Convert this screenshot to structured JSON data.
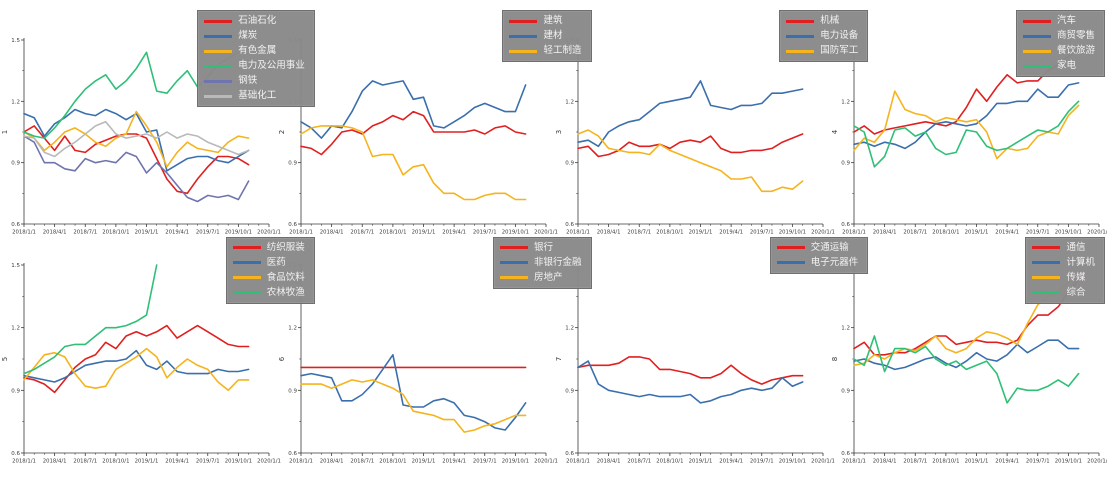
{
  "page": {
    "background": "#ffffff"
  },
  "axis": {
    "x_tick_labels": [
      "2018/1/1",
      "2018/4/1",
      "2018/7/1",
      "2018/10/1",
      "2019/1/1",
      "2019/4/1",
      "2019/7/1",
      "2019/10/1",
      "2020/1/1"
    ],
    "x_months_total": 24,
    "x_major_step": 3,
    "y_tick_labels": [
      "0.6",
      "0.9",
      "1.2",
      "1.5"
    ],
    "y_major": [
      0.6,
      0.9,
      1.2,
      1.5
    ],
    "y_minor": [
      0.75,
      1.05,
      1.35
    ],
    "ylim": [
      0.6,
      1.5
    ],
    "grid": false,
    "spine_color": "#3a3a3a",
    "tick_label_color": "#3a3a3a"
  },
  "legend_style": {
    "bg": "#898989",
    "border": "#6f6f6f",
    "text": "#f2f2f2",
    "position": "upper-right-outside"
  },
  "chart_data": [
    {
      "type": "line",
      "index": 1,
      "ylabel": "1",
      "ylim": [
        0.6,
        1.5
      ],
      "series": [
        {
          "name": "石油石化",
          "color": "#e02020",
          "values": [
            1.05,
            1.08,
            1.02,
            0.96,
            1.03,
            0.96,
            0.95,
            0.99,
            1.01,
            1.03,
            1.04,
            1.04,
            1.02,
            0.92,
            0.82,
            0.76,
            0.75,
            0.82,
            0.88,
            0.93,
            0.93,
            0.92,
            0.89
          ]
        },
        {
          "name": "煤炭",
          "color": "#3a6fad",
          "values": [
            1.14,
            1.12,
            1.03,
            1.09,
            1.12,
            1.16,
            1.14,
            1.13,
            1.16,
            1.14,
            1.11,
            1.14,
            1.05,
            1.06,
            0.86,
            0.89,
            0.92,
            0.93,
            0.93,
            0.91,
            0.9,
            0.93,
            0.96
          ]
        },
        {
          "name": "有色金属",
          "color": "#f5b41e",
          "values": [
            1.05,
            1.02,
            0.96,
            1.0,
            1.05,
            1.07,
            1.04,
            1.0,
            0.98,
            1.02,
            1.04,
            1.15,
            1.08,
            1.0,
            0.88,
            0.95,
            1.0,
            0.97,
            0.96,
            0.95,
            1.0,
            1.03,
            1.02
          ]
        },
        {
          "name": "电力及公用事业",
          "color": "#2fbf77",
          "values": [
            1.05,
            1.03,
            1.02,
            1.07,
            1.13,
            1.2,
            1.26,
            1.3,
            1.33,
            1.26,
            1.3,
            1.36,
            1.44,
            1.25,
            1.24,
            1.3,
            1.35,
            1.27,
            1.32,
            1.38,
            1.41,
            1.44,
            1.46
          ]
        },
        {
          "name": "钢铁",
          "color": "#7074ae",
          "values": [
            1.03,
            1.0,
            0.9,
            0.9,
            0.87,
            0.86,
            0.92,
            0.9,
            0.91,
            0.9,
            0.95,
            0.93,
            0.85,
            0.9,
            0.85,
            0.79,
            0.73,
            0.71,
            0.74,
            0.73,
            0.74,
            0.72,
            0.81
          ]
        },
        {
          "name": "基础化工",
          "color": "#b9b9b9",
          "values": [
            1.03,
            1.02,
            0.95,
            0.93,
            0.97,
            1.0,
            1.04,
            1.08,
            1.1,
            1.04,
            1.02,
            1.03,
            1.04,
            1.02,
            1.05,
            1.02,
            1.04,
            1.03,
            1.0,
            0.98,
            0.96,
            0.94,
            0.96
          ]
        }
      ]
    },
    {
      "type": "line",
      "index": 2,
      "ylabel": "2",
      "ylim": [
        0.6,
        1.5
      ],
      "series": [
        {
          "name": "建筑",
          "color": "#e02020",
          "values": [
            0.98,
            0.97,
            0.94,
            0.99,
            1.05,
            1.06,
            1.04,
            1.08,
            1.1,
            1.13,
            1.11,
            1.15,
            1.13,
            1.05,
            1.05,
            1.05,
            1.05,
            1.06,
            1.04,
            1.07,
            1.08,
            1.05,
            1.04
          ]
        },
        {
          "name": "建材",
          "color": "#3a6fad",
          "values": [
            1.1,
            1.07,
            1.02,
            1.08,
            1.07,
            1.15,
            1.25,
            1.3,
            1.28,
            1.29,
            1.3,
            1.21,
            1.22,
            1.08,
            1.07,
            1.1,
            1.13,
            1.17,
            1.19,
            1.17,
            1.15,
            1.15,
            1.28
          ]
        },
        {
          "name": "轻工制造",
          "color": "#f5b41e",
          "values": [
            1.04,
            1.07,
            1.08,
            1.08,
            1.08,
            1.07,
            1.05,
            0.93,
            0.94,
            0.94,
            0.84,
            0.88,
            0.89,
            0.8,
            0.75,
            0.75,
            0.72,
            0.72,
            0.74,
            0.75,
            0.75,
            0.72,
            0.72
          ]
        }
      ]
    },
    {
      "type": "line",
      "index": 3,
      "ylabel": "3",
      "ylim": [
        0.6,
        1.5
      ],
      "series": [
        {
          "name": "机械",
          "color": "#e02020",
          "values": [
            0.97,
            0.98,
            0.93,
            0.94,
            0.96,
            1.0,
            0.98,
            0.98,
            0.99,
            0.97,
            1.0,
            1.01,
            1.0,
            1.03,
            0.97,
            0.95,
            0.95,
            0.96,
            0.96,
            0.97,
            1.0,
            1.02,
            1.04
          ]
        },
        {
          "name": "电力设备",
          "color": "#3a6fad",
          "values": [
            1.0,
            1.01,
            0.98,
            1.05,
            1.08,
            1.1,
            1.11,
            1.15,
            1.19,
            1.2,
            1.21,
            1.22,
            1.3,
            1.18,
            1.17,
            1.16,
            1.18,
            1.18,
            1.19,
            1.24,
            1.24,
            1.25,
            1.26
          ]
        },
        {
          "name": "国防军工",
          "color": "#f5b41e",
          "values": [
            1.04,
            1.06,
            1.03,
            0.97,
            0.96,
            0.95,
            0.95,
            0.94,
            0.99,
            0.96,
            0.94,
            0.92,
            0.9,
            0.88,
            0.86,
            0.82,
            0.82,
            0.83,
            0.76,
            0.76,
            0.78,
            0.77,
            0.81
          ]
        }
      ]
    },
    {
      "type": "line",
      "index": 4,
      "ylabel": "4",
      "ylim": [
        0.6,
        1.5
      ],
      "series": [
        {
          "name": "汽车",
          "color": "#e02020",
          "values": [
            1.05,
            1.08,
            1.04,
            1.06,
            1.07,
            1.08,
            1.09,
            1.1,
            1.09,
            1.08,
            1.1,
            1.17,
            1.26,
            1.2,
            1.27,
            1.33,
            1.29,
            1.3,
            1.3,
            1.35,
            1.38,
            1.42,
            1.46
          ]
        },
        {
          "name": "商贸零售",
          "color": "#3a6fad",
          "values": [
            0.99,
            1.0,
            0.98,
            1.0,
            0.99,
            0.97,
            1.0,
            1.05,
            1.09,
            1.1,
            1.09,
            1.08,
            1.09,
            1.13,
            1.19,
            1.19,
            1.2,
            1.2,
            1.26,
            1.22,
            1.22,
            1.28,
            1.29
          ]
        },
        {
          "name": "餐饮旅游",
          "color": "#f5b41e",
          "values": [
            0.96,
            1.02,
            1.0,
            1.06,
            1.25,
            1.16,
            1.14,
            1.13,
            1.1,
            1.12,
            1.11,
            1.1,
            1.11,
            1.05,
            0.92,
            0.97,
            0.96,
            0.97,
            1.03,
            1.05,
            1.04,
            1.13,
            1.18
          ]
        },
        {
          "name": "家电",
          "color": "#2fbf77",
          "values": [
            1.08,
            1.05,
            0.88,
            0.93,
            1.06,
            1.07,
            1.03,
            1.05,
            0.97,
            0.94,
            0.95,
            1.06,
            1.05,
            0.98,
            0.96,
            0.97,
            1.0,
            1.03,
            1.06,
            1.05,
            1.08,
            1.15,
            1.2
          ]
        }
      ]
    },
    {
      "type": "line",
      "index": 5,
      "ylabel": "5",
      "ylim": [
        0.6,
        1.5
      ],
      "series": [
        {
          "name": "纺织服装",
          "color": "#e02020",
          "values": [
            0.96,
            0.95,
            0.93,
            0.89,
            0.95,
            1.01,
            1.05,
            1.07,
            1.13,
            1.1,
            1.16,
            1.18,
            1.16,
            1.18,
            1.21,
            1.15,
            1.18,
            1.21,
            1.18,
            1.15,
            1.12,
            1.11,
            1.11
          ]
        },
        {
          "name": "医药",
          "color": "#3a6fad",
          "values": [
            0.97,
            0.96,
            0.95,
            0.94,
            0.96,
            0.99,
            1.02,
            1.03,
            1.04,
            1.04,
            1.05,
            1.09,
            1.02,
            1.0,
            1.04,
            0.99,
            0.98,
            0.98,
            0.98,
            1.0,
            0.99,
            0.99,
            1.0
          ]
        },
        {
          "name": "食品饮料",
          "color": "#f5b41e",
          "values": [
            0.95,
            1.01,
            1.07,
            1.08,
            1.06,
            0.98,
            0.92,
            0.91,
            0.92,
            1.0,
            1.03,
            1.06,
            1.1,
            1.06,
            0.96,
            1.01,
            1.05,
            1.02,
            1.0,
            0.94,
            0.9,
            0.95,
            0.95
          ]
        },
        {
          "name": "农林牧渔",
          "color": "#2fbf77",
          "values": [
            0.98,
            1.0,
            1.03,
            1.06,
            1.11,
            1.12,
            1.12,
            1.16,
            1.2,
            1.2,
            1.21,
            1.23,
            1.26,
            1.5
          ]
        }
      ]
    },
    {
      "type": "line",
      "index": 6,
      "ylabel": "6",
      "ylim": [
        0.6,
        1.5
      ],
      "series": [
        {
          "name": "银行",
          "color": "#e02020",
          "values": [
            1.01,
            1.01,
            1.01,
            1.01,
            1.01,
            1.01,
            1.01,
            1.01,
            1.01,
            1.01,
            1.01,
            1.01,
            1.01,
            1.01,
            1.01,
            1.01,
            1.01,
            1.01,
            1.01,
            1.01,
            1.01,
            1.01,
            1.01
          ]
        },
        {
          "name": "非银行金融",
          "color": "#3a6fad",
          "values": [
            0.97,
            0.98,
            0.97,
            0.96,
            0.85,
            0.85,
            0.88,
            0.93,
            1.0,
            1.07,
            0.83,
            0.82,
            0.82,
            0.85,
            0.86,
            0.84,
            0.78,
            0.77,
            0.75,
            0.72,
            0.71,
            0.77,
            0.84
          ]
        },
        {
          "name": "房地产",
          "color": "#f5b41e",
          "values": [
            0.93,
            0.93,
            0.93,
            0.91,
            0.93,
            0.95,
            0.94,
            0.95,
            0.93,
            0.91,
            0.88,
            0.8,
            0.79,
            0.78,
            0.76,
            0.76,
            0.7,
            0.71,
            0.73,
            0.74,
            0.76,
            0.78,
            0.78
          ]
        }
      ]
    },
    {
      "type": "line",
      "index": 7,
      "ylabel": "7",
      "ylim": [
        0.6,
        1.5
      ],
      "series": [
        {
          "name": "交通运输",
          "color": "#e02020",
          "values": [
            1.01,
            1.02,
            1.02,
            1.02,
            1.03,
            1.06,
            1.06,
            1.05,
            1.0,
            1.0,
            0.99,
            0.98,
            0.96,
            0.96,
            0.98,
            1.02,
            0.98,
            0.95,
            0.93,
            0.95,
            0.96,
            0.97,
            0.97
          ]
        },
        {
          "name": "电子元器件",
          "color": "#3a6fad",
          "values": [
            1.01,
            1.04,
            0.93,
            0.9,
            0.89,
            0.88,
            0.87,
            0.88,
            0.87,
            0.87,
            0.87,
            0.88,
            0.84,
            0.85,
            0.87,
            0.88,
            0.9,
            0.91,
            0.9,
            0.91,
            0.96,
            0.92,
            0.94
          ]
        }
      ]
    },
    {
      "type": "line",
      "index": 8,
      "ylabel": "8",
      "ylim": [
        0.6,
        1.5
      ],
      "series": [
        {
          "name": "通信",
          "color": "#e02020",
          "values": [
            1.1,
            1.13,
            1.07,
            1.07,
            1.08,
            1.08,
            1.1,
            1.13,
            1.16,
            1.16,
            1.12,
            1.13,
            1.14,
            1.13,
            1.13,
            1.12,
            1.14,
            1.21,
            1.26,
            1.26,
            1.3,
            1.37,
            1.43
          ]
        },
        {
          "name": "计算机",
          "color": "#3a6fad",
          "values": [
            1.04,
            1.05,
            1.03,
            1.02,
            1.0,
            1.01,
            1.03,
            1.05,
            1.06,
            1.03,
            1.01,
            1.04,
            1.08,
            1.05,
            1.04,
            1.07,
            1.12,
            1.08,
            1.11,
            1.14,
            1.14,
            1.1,
            1.1
          ]
        },
        {
          "name": "传媒",
          "color": "#f5b41e",
          "values": [
            1.02,
            1.03,
            1.07,
            1.05,
            1.08,
            1.1,
            1.09,
            1.12,
            1.16,
            1.1,
            1.08,
            1.1,
            1.15,
            1.18,
            1.17,
            1.15,
            1.12,
            1.22,
            1.31,
            1.35,
            1.37,
            1.42,
            1.47
          ]
        },
        {
          "name": "综合",
          "color": "#2fbf77",
          "values": [
            1.05,
            1.02,
            1.16,
            0.99,
            1.1,
            1.1,
            1.08,
            1.11,
            1.05,
            1.02,
            1.04,
            1.0,
            1.02,
            1.04,
            0.98,
            0.84,
            0.91,
            0.9,
            0.9,
            0.92,
            0.95,
            0.92,
            0.98
          ]
        }
      ]
    }
  ]
}
